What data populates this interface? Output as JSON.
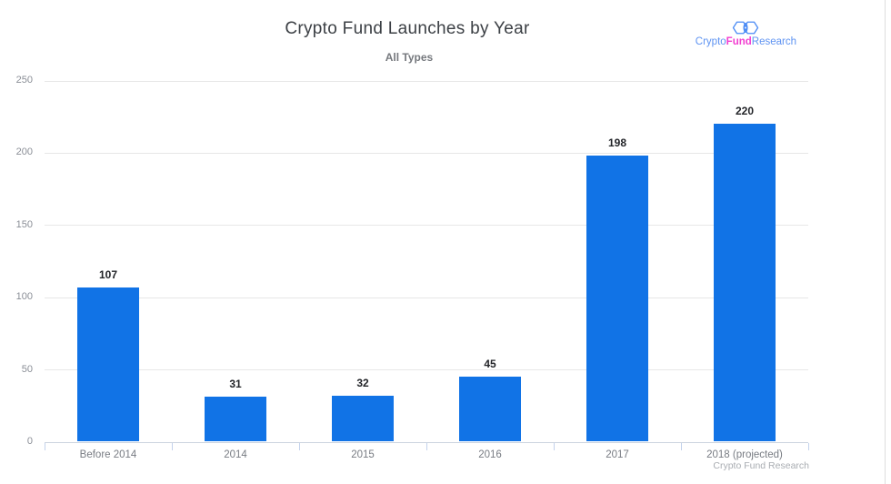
{
  "header": {
    "title": "Crypto Fund Launches by Year",
    "subtitle": "All Types"
  },
  "logo": {
    "icon": "hexagon-chain-icon",
    "word1": "Crypto",
    "word2": "Fund",
    "word3": "Research",
    "text_color": "#5e93f2",
    "accent_color": "#f23ed0",
    "icon_color": "#4b8bf5"
  },
  "credit": "Crypto Fund Research",
  "colors": {
    "bar": "#1173e6",
    "gridline": "#e7e7e7",
    "axis_line": "#ccd4df",
    "tick": "#c3d2ec",
    "value_label": "#222428",
    "y_label": "#8a8e96",
    "x_label": "#787c83",
    "title": "#3c4045",
    "subtitle": "#76797e",
    "credit": "#a9adb2",
    "page_border": "#dedede"
  },
  "chart_data": {
    "type": "bar",
    "title": "Crypto Fund Launches by Year",
    "subtitle": "All Types",
    "categories": [
      "Before 2014",
      "2014",
      "2015",
      "2016",
      "2017",
      "2018 (projected)"
    ],
    "values": [
      107,
      31,
      32,
      45,
      198,
      220
    ],
    "xlabel": "",
    "ylabel": "",
    "ylim": [
      0,
      250
    ],
    "yticks": [
      0,
      50,
      100,
      150,
      200,
      250
    ],
    "grid": true,
    "legend": "none",
    "bar_color": "#1173e6",
    "source_note": "Crypto Fund Research"
  }
}
